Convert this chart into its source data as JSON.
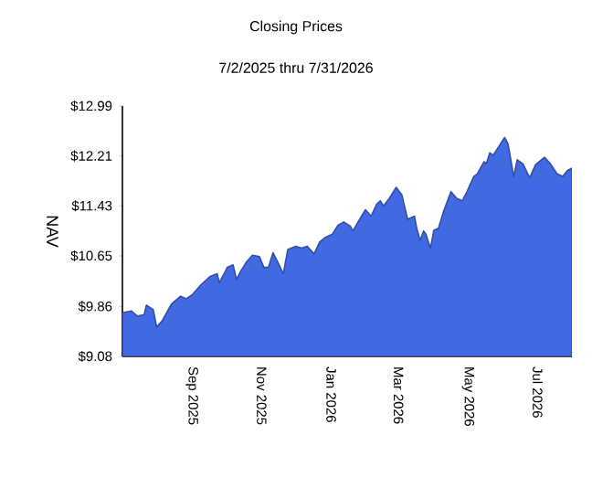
{
  "chart_data": {
    "type": "area",
    "title": "Closing Prices",
    "subtitle": "7/2/2025 thru 7/31/2026",
    "ylabel": "NAV",
    "xlim": [
      "2025-07-02",
      "2026-07-31"
    ],
    "xticks": [
      {
        "value": "2025-09-01",
        "label": "Sep  2025"
      },
      {
        "value": "2025-11-01",
        "label": "Nov  2025"
      },
      {
        "value": "2026-01-01",
        "label": "Jan  2026"
      },
      {
        "value": "2026-03-01",
        "label": "Mar  2026"
      },
      {
        "value": "2026-05-01",
        "label": "May  2026"
      },
      {
        "value": "2026-07-01",
        "label": "Jul  2026"
      }
    ],
    "ylim": [
      9.08,
      12.99
    ],
    "yticks": [
      {
        "value": 9.08,
        "label": "$9.08"
      },
      {
        "value": 9.86,
        "label": "$9.86"
      },
      {
        "value": 10.65,
        "label": "$10.65"
      },
      {
        "value": 11.43,
        "label": "$11.43"
      },
      {
        "value": 12.21,
        "label": "$12.21"
      },
      {
        "value": 12.99,
        "label": "$12.99"
      }
    ],
    "x": [
      "2025-07-02",
      "2025-07-10",
      "2025-07-15",
      "2025-07-21",
      "2025-07-23",
      "2025-07-29",
      "2025-08-01",
      "2025-08-06",
      "2025-08-14",
      "2025-08-22",
      "2025-08-27",
      "2025-09-01",
      "2025-09-09",
      "2025-09-17",
      "2025-09-23",
      "2025-09-25",
      "2025-10-02",
      "2025-10-07",
      "2025-10-10",
      "2025-10-14",
      "2025-10-19",
      "2025-10-24",
      "2025-10-30",
      "2025-11-03",
      "2025-11-07",
      "2025-11-11",
      "2025-11-15",
      "2025-11-20",
      "2025-11-24",
      "2025-12-01",
      "2025-12-06",
      "2025-12-11",
      "2025-12-17",
      "2025-12-22",
      "2025-12-27",
      "2026-01-02",
      "2026-01-07",
      "2026-01-12",
      "2026-01-18",
      "2026-01-20",
      "2026-01-26",
      "2026-01-31",
      "2026-02-05",
      "2026-02-10",
      "2026-02-13",
      "2026-02-16",
      "2026-02-21",
      "2026-02-27",
      "2026-03-04",
      "2026-03-07",
      "2026-03-09",
      "2026-03-15",
      "2026-03-17",
      "2026-03-20",
      "2026-03-23",
      "2026-03-25",
      "2026-03-29",
      "2026-04-01",
      "2026-04-05",
      "2026-04-10",
      "2026-04-16",
      "2026-04-21",
      "2026-04-26",
      "2026-04-30",
      "2026-05-06",
      "2026-05-09",
      "2026-05-15",
      "2026-05-17",
      "2026-05-20",
      "2026-05-23",
      "2026-05-28",
      "2026-06-02",
      "2026-06-05",
      "2026-06-10",
      "2026-06-13",
      "2026-06-18",
      "2026-06-24",
      "2026-06-29",
      "2026-07-07",
      "2026-07-12",
      "2026-07-18",
      "2026-07-23",
      "2026-07-27",
      "2026-07-31"
    ],
    "series": [
      {
        "color": "#4169e1",
        "values": [
          9.76,
          9.79,
          9.71,
          9.73,
          9.88,
          9.81,
          9.54,
          9.64,
          9.9,
          10.02,
          9.98,
          10.04,
          10.2,
          10.33,
          10.37,
          10.23,
          10.47,
          10.51,
          10.28,
          10.42,
          10.56,
          10.66,
          10.64,
          10.47,
          10.47,
          10.7,
          10.56,
          10.37,
          10.75,
          10.8,
          10.77,
          10.8,
          10.68,
          10.87,
          10.94,
          10.99,
          11.13,
          11.18,
          11.11,
          11.04,
          11.22,
          11.37,
          11.27,
          11.46,
          11.51,
          11.43,
          11.55,
          11.72,
          11.6,
          11.37,
          11.22,
          11.27,
          11.08,
          10.89,
          11.04,
          10.99,
          10.77,
          11.05,
          11.08,
          11.37,
          11.65,
          11.55,
          11.51,
          11.65,
          11.89,
          11.93,
          12.12,
          12.09,
          12.26,
          12.22,
          12.36,
          12.5,
          12.4,
          11.89,
          12.15,
          12.09,
          11.87,
          12.07,
          12.19,
          12.09,
          11.93,
          11.89,
          11.98,
          12.02
        ]
      }
    ]
  }
}
